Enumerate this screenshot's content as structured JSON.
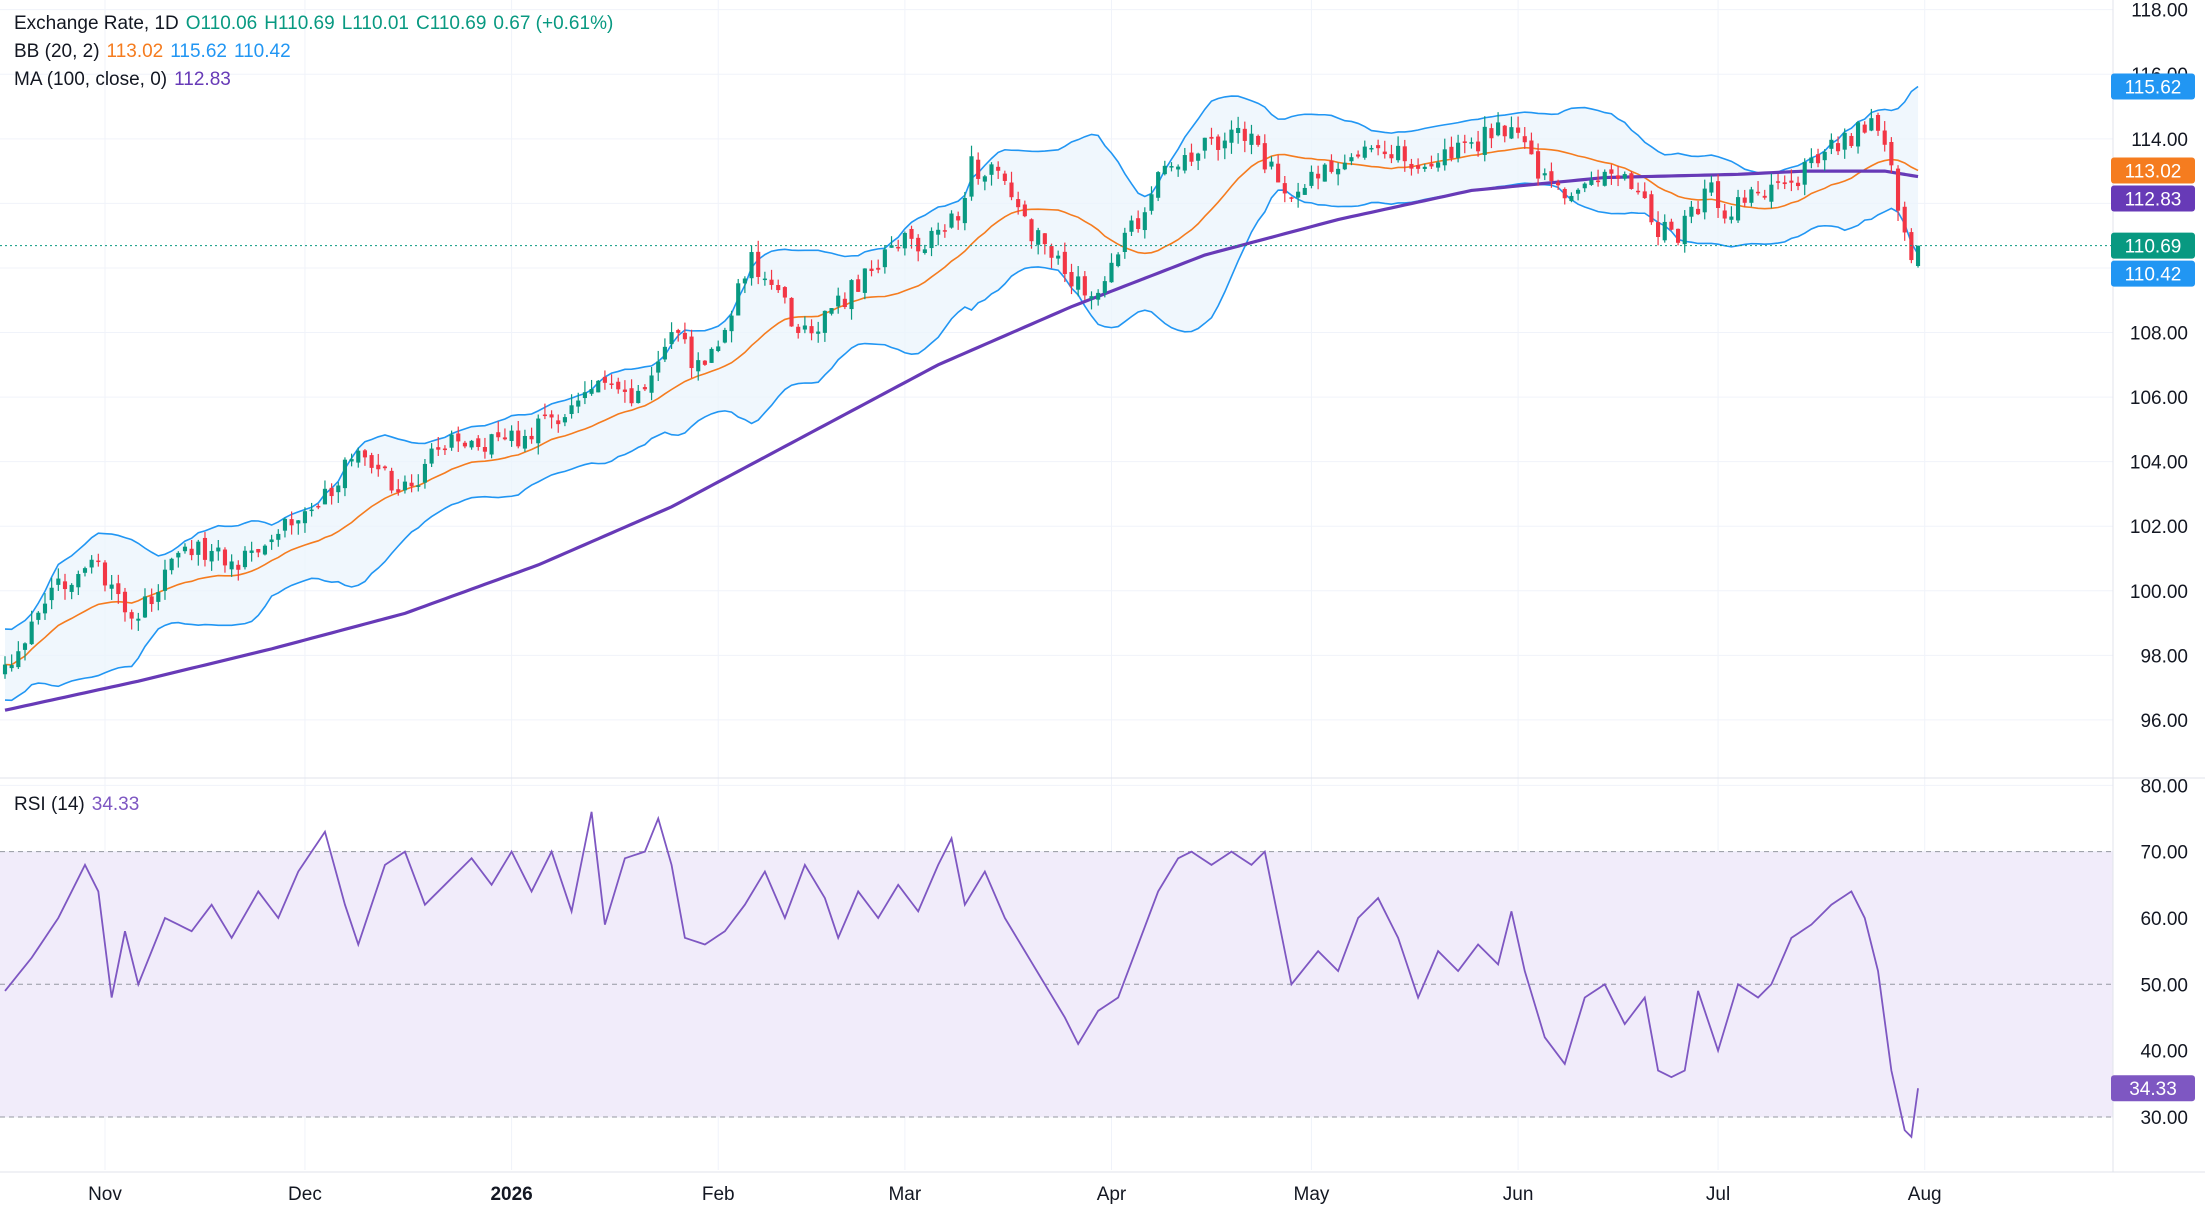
{
  "legend": {
    "main": {
      "name": "Exchange Rate, 1D",
      "open": "O110.06",
      "high": "H110.69",
      "low": "L110.01",
      "close": "C110.69",
      "change": "0.67 (+0.61%)"
    },
    "bb": {
      "label": "BB (20, 2)",
      "basis": "113.02",
      "upper": "115.62",
      "lower": "110.42"
    },
    "ma": {
      "label": "MA (100, close, 0)",
      "value": "112.83"
    },
    "rsi": {
      "label": "RSI (14)",
      "value": "34.33"
    }
  },
  "colors": {
    "up": "#089981",
    "down": "#f23645",
    "bb_basis": "#f57c1f",
    "bb_band": "#2196f3",
    "bb_fill": "#eaf4fc",
    "ma": "#673ab7",
    "rsi": "#7e57c2",
    "rsi_band": "#f1ecfa",
    "grid": "#f0f3fa",
    "text": "#131722"
  },
  "chart_data": [
    {
      "type": "candlestick",
      "title": "Exchange Rate, 1D",
      "price_axis": {
        "ticks": [
          96,
          98,
          100,
          102,
          104,
          106,
          108,
          110,
          112,
          114,
          116,
          118
        ],
        "tick_labels": [
          "96.00",
          "98.00",
          "100.00",
          "102.00",
          "104.00",
          "106.00",
          "108.00",
          "110.00",
          "112.00",
          "114.00",
          "116.00",
          "118.00"
        ],
        "range": [
          94.2,
          118.3
        ]
      },
      "time_axis": {
        "labels": [
          {
            "text": "Nov",
            "day": 15,
            "bold": false
          },
          {
            "text": "Dec",
            "day": 45,
            "bold": false
          },
          {
            "text": "2026",
            "day": 76,
            "bold": true
          },
          {
            "text": "Feb",
            "day": 107,
            "bold": false
          },
          {
            "text": "Mar",
            "day": 135,
            "bold": false
          },
          {
            "text": "Apr",
            "day": 166,
            "bold": false
          },
          {
            "text": "May",
            "day": 196,
            "bold": false
          },
          {
            "text": "Jun",
            "day": 227,
            "bold": false
          },
          {
            "text": "Jul",
            "day": 257,
            "bold": false
          },
          {
            "text": "Aug",
            "day": 288,
            "bold": false
          }
        ],
        "range": [
          0,
          317
        ]
      },
      "last_close": 110.69,
      "price_labels": [
        {
          "value": 115.62,
          "text": "115.62",
          "color": "#2196f3"
        },
        {
          "value": 113.02,
          "text": "113.02",
          "color": "#f57c1f"
        },
        {
          "value": 112.83,
          "text": "112.83",
          "color": "#673ab7"
        },
        {
          "value": 110.69,
          "text": "110.69",
          "color": "#089981"
        },
        {
          "value": 110.42,
          "text": "110.42",
          "color": "#2196f3"
        }
      ],
      "price_anchors": [
        [
          0,
          97.6
        ],
        [
          4,
          98.8
        ],
        [
          9,
          100.4
        ],
        [
          13,
          100.9
        ],
        [
          17,
          99.6
        ],
        [
          20,
          99.2
        ],
        [
          24,
          100.5
        ],
        [
          28,
          101.4
        ],
        [
          31,
          101.2
        ],
        [
          35,
          100.9
        ],
        [
          40,
          101.9
        ],
        [
          45,
          102.4
        ],
        [
          49,
          103.2
        ],
        [
          52,
          104.1
        ],
        [
          56,
          103.9
        ],
        [
          59,
          102.9
        ],
        [
          62,
          103.6
        ],
        [
          65,
          104.5
        ],
        [
          69,
          104.7
        ],
        [
          73,
          104.6
        ],
        [
          77,
          104.8
        ],
        [
          82,
          105.2
        ],
        [
          86,
          105.9
        ],
        [
          90,
          106.3
        ],
        [
          92,
          106.0
        ],
        [
          95,
          105.9
        ],
        [
          98,
          107.3
        ],
        [
          101,
          108.1
        ],
        [
          103,
          106.9
        ],
        [
          106,
          107.4
        ],
        [
          109,
          108.8
        ],
        [
          112,
          110.2
        ],
        [
          115,
          109.6
        ],
        [
          118,
          108.3
        ],
        [
          121,
          108.0
        ],
        [
          124,
          108.7
        ],
        [
          127,
          109.3
        ],
        [
          131,
          110.2
        ],
        [
          134,
          110.9
        ],
        [
          137,
          110.6
        ],
        [
          140,
          111.1
        ],
        [
          143,
          111.8
        ],
        [
          145,
          113.2
        ],
        [
          148,
          112.9
        ],
        [
          151,
          112.3
        ],
        [
          154,
          111.1
        ],
        [
          157,
          110.4
        ],
        [
          160,
          109.6
        ],
        [
          162,
          109.2
        ],
        [
          165,
          109.7
        ],
        [
          168,
          110.8
        ],
        [
          171,
          111.9
        ],
        [
          174,
          113.0
        ],
        [
          178,
          113.6
        ],
        [
          182,
          113.8
        ],
        [
          185,
          114.3
        ],
        [
          188,
          113.6
        ],
        [
          191,
          112.7
        ],
        [
          193,
          112.2
        ],
        [
          197,
          112.9
        ],
        [
          201,
          113.5
        ],
        [
          206,
          114.0
        ],
        [
          209,
          113.5
        ],
        [
          213,
          113.2
        ],
        [
          216,
          113.4
        ],
        [
          220,
          113.7
        ],
        [
          224,
          114.4
        ],
        [
          227,
          114.3
        ],
        [
          229,
          113.2
        ],
        [
          232,
          112.6
        ],
        [
          236,
          112.3
        ],
        [
          240,
          112.7
        ],
        [
          243,
          113.0
        ],
        [
          246,
          112.2
        ],
        [
          248,
          111.3
        ],
        [
          251,
          111.0
        ],
        [
          253,
          111.7
        ],
        [
          256,
          112.4
        ],
        [
          258,
          111.5
        ],
        [
          262,
          112.2
        ],
        [
          265,
          112.5
        ],
        [
          268,
          112.3
        ],
        [
          270,
          113.0
        ],
        [
          273,
          113.5
        ],
        [
          276,
          113.9
        ],
        [
          278,
          114.2
        ],
        [
          280,
          114.4
        ],
        [
          282,
          113.9
        ],
        [
          283,
          113.2
        ],
        [
          284,
          111.9
        ],
        [
          285,
          110.9
        ],
        [
          286,
          110.06
        ],
        [
          287,
          110.69
        ]
      ],
      "ma100_anchors": [
        [
          0,
          96.3
        ],
        [
          20,
          97.2
        ],
        [
          40,
          98.2
        ],
        [
          60,
          99.3
        ],
        [
          80,
          100.8
        ],
        [
          100,
          102.6
        ],
        [
          120,
          104.8
        ],
        [
          140,
          107.0
        ],
        [
          160,
          108.8
        ],
        [
          180,
          110.4
        ],
        [
          200,
          111.5
        ],
        [
          220,
          112.4
        ],
        [
          240,
          112.8
        ],
        [
          260,
          112.9
        ],
        [
          270,
          113.0
        ],
        [
          282,
          113.0
        ],
        [
          287,
          112.83
        ]
      ],
      "bollinger": {
        "period": 20,
        "stddev": 2,
        "basis_last": 113.02,
        "upper_last": 115.62,
        "lower_last": 110.42
      }
    },
    {
      "type": "line",
      "title": "RSI (14)",
      "value_axis": {
        "ticks": [
          30,
          40,
          50,
          60,
          70,
          80
        ],
        "tick_labels": [
          "30.00",
          "40.00",
          "50.00",
          "60.00",
          "70.00",
          "80.00"
        ],
        "range": [
          22,
          80.5
        ]
      },
      "band": [
        30,
        70
      ],
      "midline": 50,
      "last_value": 34.33,
      "series": [
        {
          "values_anchors": [
            [
              0,
              49
            ],
            [
              4,
              54
            ],
            [
              8,
              60
            ],
            [
              12,
              68
            ],
            [
              14,
              64
            ],
            [
              16,
              48
            ],
            [
              18,
              58
            ],
            [
              20,
              50
            ],
            [
              24,
              60
            ],
            [
              28,
              58
            ],
            [
              31,
              62
            ],
            [
              34,
              57
            ],
            [
              38,
              64
            ],
            [
              41,
              60
            ],
            [
              44,
              67
            ],
            [
              48,
              73
            ],
            [
              51,
              62
            ],
            [
              53,
              56
            ],
            [
              57,
              68
            ],
            [
              60,
              70
            ],
            [
              63,
              62
            ],
            [
              67,
              66
            ],
            [
              70,
              69
            ],
            [
              73,
              65
            ],
            [
              76,
              70
            ],
            [
              79,
              64
            ],
            [
              82,
              70
            ],
            [
              85,
              61
            ],
            [
              88,
              76
            ],
            [
              90,
              59
            ],
            [
              93,
              69
            ],
            [
              96,
              70
            ],
            [
              98,
              75
            ],
            [
              100,
              68
            ],
            [
              102,
              57
            ],
            [
              105,
              56
            ],
            [
              108,
              58
            ],
            [
              111,
              62
            ],
            [
              114,
              67
            ],
            [
              117,
              60
            ],
            [
              120,
              68
            ],
            [
              123,
              63
            ],
            [
              125,
              57
            ],
            [
              128,
              64
            ],
            [
              131,
              60
            ],
            [
              134,
              65
            ],
            [
              137,
              61
            ],
            [
              140,
              68
            ],
            [
              142,
              72
            ],
            [
              144,
              62
            ],
            [
              147,
              67
            ],
            [
              150,
              60
            ],
            [
              153,
              55
            ],
            [
              156,
              50
            ],
            [
              159,
              45
            ],
            [
              161,
              41
            ],
            [
              164,
              46
            ],
            [
              167,
              48
            ],
            [
              170,
              56
            ],
            [
              173,
              64
            ],
            [
              176,
              69
            ],
            [
              178,
              70
            ],
            [
              181,
              68
            ],
            [
              184,
              70
            ],
            [
              187,
              68
            ],
            [
              189,
              70
            ],
            [
              193,
              50
            ],
            [
              197,
              55
            ],
            [
              200,
              52
            ],
            [
              203,
              60
            ],
            [
              206,
              63
            ],
            [
              209,
              57
            ],
            [
              212,
              48
            ],
            [
              215,
              55
            ],
            [
              218,
              52
            ],
            [
              221,
              56
            ],
            [
              224,
              53
            ],
            [
              226,
              61
            ],
            [
              228,
              52
            ],
            [
              231,
              42
            ],
            [
              234,
              38
            ],
            [
              237,
              48
            ],
            [
              240,
              50
            ],
            [
              243,
              44
            ],
            [
              246,
              48
            ],
            [
              248,
              37
            ],
            [
              250,
              36
            ],
            [
              252,
              37
            ],
            [
              254,
              49
            ],
            [
              257,
              40
            ],
            [
              260,
              50
            ],
            [
              263,
              48
            ],
            [
              265,
              50
            ],
            [
              268,
              57
            ],
            [
              271,
              59
            ],
            [
              274,
              62
            ],
            [
              277,
              64
            ],
            [
              279,
              60
            ],
            [
              281,
              52
            ],
            [
              283,
              37
            ],
            [
              285,
              28
            ],
            [
              286,
              27
            ],
            [
              287,
              34.33
            ]
          ]
        }
      ]
    }
  ]
}
